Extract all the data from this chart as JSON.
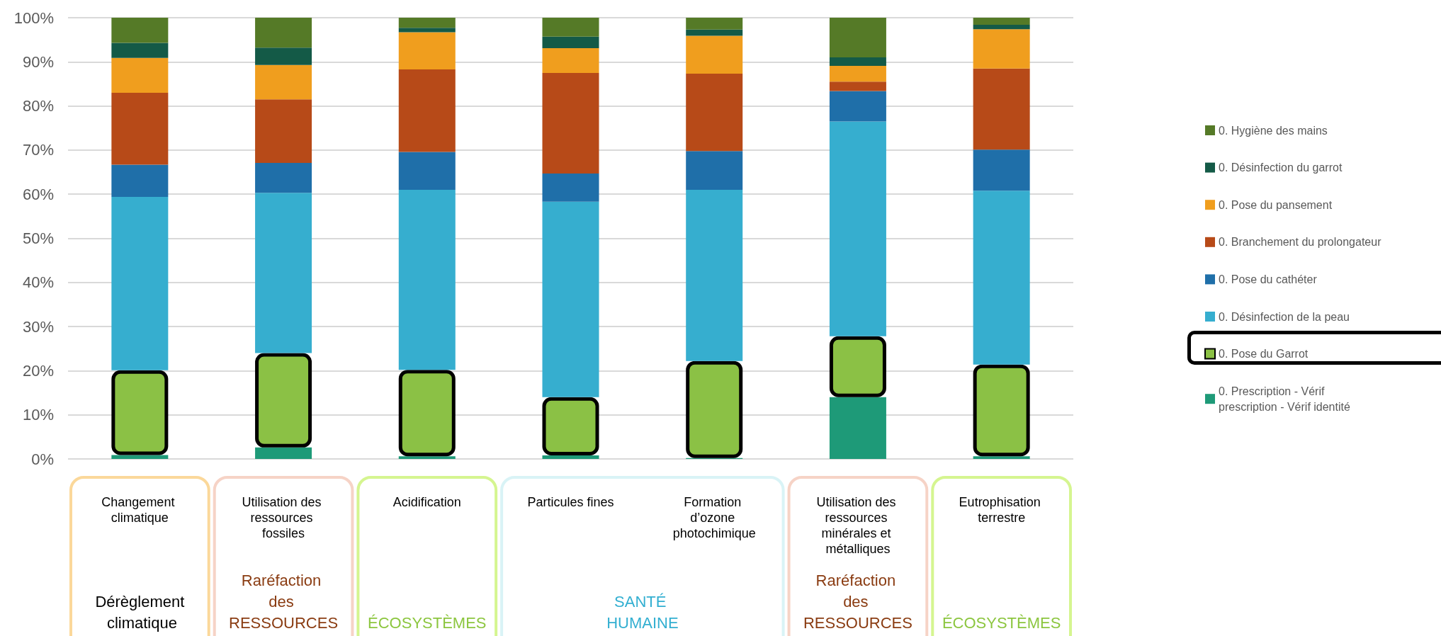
{
  "chart_data": {
    "type": "bar",
    "stacked": true,
    "grid": "y",
    "legend": "right",
    "categories": [
      "Changement climatique",
      "Utilisation des ressources fossiles",
      "Acidification",
      "Particules fines",
      "Formation d’ozone photochimique",
      "Utilisation des ressources minérales et métalliques",
      "Eutrophisation terrestre"
    ],
    "ylim": [
      0,
      100
    ],
    "yticks": [
      {
        "value": 0,
        "label": "0%"
      },
      {
        "value": 10,
        "label": "10%"
      },
      {
        "value": 20,
        "label": "20%"
      },
      {
        "value": 30,
        "label": "30%"
      },
      {
        "value": 40,
        "label": "40%"
      },
      {
        "value": 50,
        "label": "50%"
      },
      {
        "value": 60,
        "label": "60%"
      },
      {
        "value": 70,
        "label": "70%"
      },
      {
        "value": 80,
        "label": "80%"
      },
      {
        "value": 90,
        "label": "90%"
      },
      {
        "value": 100,
        "label": "100%"
      }
    ],
    "series": [
      {
        "name": "0. Prescription - Vérif prescription - Vérif identité",
        "color": "#1e9a78",
        "values": [
          0.9,
          2.6,
          0.6,
          0.8,
          0.2,
          14.0,
          0.6
        ]
      },
      {
        "name": "0. Pose du Garrot",
        "color": "#8bc145",
        "values": [
          19.2,
          21.4,
          19.6,
          13.2,
          22.0,
          13.8,
          20.8
        ]
      },
      {
        "name": "0. Désinfection de la peau",
        "color": "#36aecf",
        "values": [
          39.3,
          36.3,
          40.8,
          44.3,
          38.8,
          48.7,
          39.4
        ]
      },
      {
        "name": "0. Pose du cathéter",
        "color": "#1f6fa9",
        "values": [
          7.3,
          6.8,
          8.6,
          6.4,
          8.8,
          6.9,
          9.3
        ]
      },
      {
        "name": "0. Branchement du prolongateur",
        "color": "#b74a18",
        "values": [
          16.3,
          14.4,
          18.7,
          22.8,
          17.5,
          2.1,
          18.4
        ]
      },
      {
        "name": "0. Pose du pansement",
        "color": "#f09e1e",
        "values": [
          7.9,
          7.8,
          8.4,
          5.6,
          8.6,
          3.6,
          8.9
        ]
      },
      {
        "name": "0. Désinfection du garrot",
        "color": "#145a47",
        "values": [
          3.4,
          3.9,
          1.0,
          2.6,
          1.4,
          1.9,
          1.0
        ]
      },
      {
        "name": "0. Hygiène des mains",
        "color": "#557a27",
        "values": [
          5.7,
          6.8,
          2.3,
          4.3,
          2.7,
          9.0,
          1.6
        ]
      }
    ],
    "annotations": [
      "Dérèglement climatique",
      "Raréfaction des RESSOURCES",
      "ÉCOSYSTÈMES",
      "SANTÉ HUMAINE",
      "Raréfaction des RESSOURCES",
      "ÉCOSYSTÈMES"
    ]
  }
}
